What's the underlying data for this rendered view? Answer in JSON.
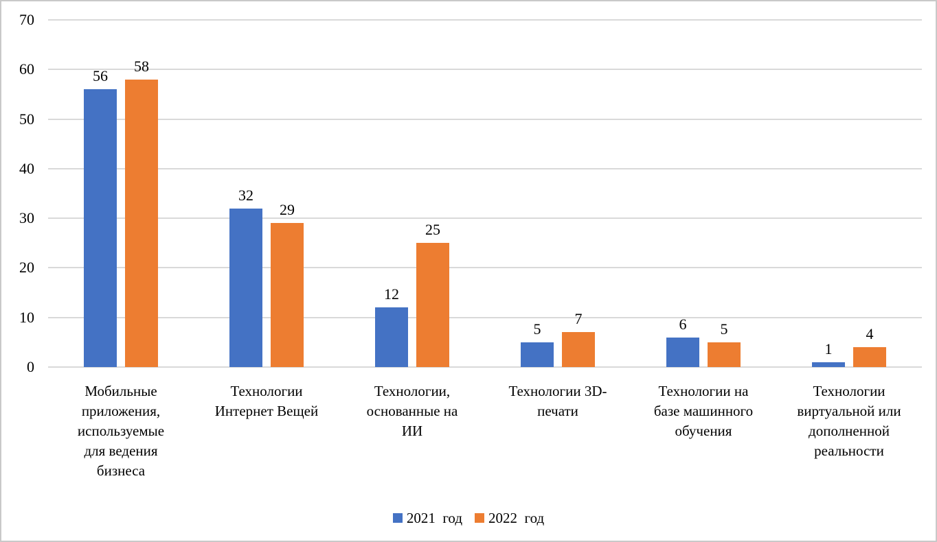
{
  "chart_data": {
    "type": "bar",
    "title": "",
    "xlabel": "",
    "ylabel": "",
    "categories": [
      "Мобильные\nприложения,\nиспользуемые\nдля ведения\nбизнеса",
      "Технологии\nИнтернет Вещей",
      "Технологии,\nоснованные на\nИИ",
      "Технологии 3D-\nпечати",
      "Технологии на\nбазе машинного\nобучения",
      "Технологии\nвиртуальной или\nдополненной\nреальности"
    ],
    "series": [
      {
        "name": "2021  год",
        "color": "#4472c4",
        "values": [
          56,
          32,
          12,
          5,
          6,
          1
        ]
      },
      {
        "name": "2022  год",
        "color": "#ed7d31",
        "values": [
          58,
          29,
          25,
          7,
          5,
          4
        ]
      }
    ],
    "ylim": [
      0,
      70
    ],
    "yticks": [
      0,
      10,
      20,
      30,
      40,
      50,
      60,
      70
    ],
    "grid": true,
    "legend_position": "bottom",
    "colors": {
      "gridline": "#d9d9d9",
      "border": "#c9c9c9",
      "text": "#000000",
      "background": "#ffffff"
    }
  }
}
